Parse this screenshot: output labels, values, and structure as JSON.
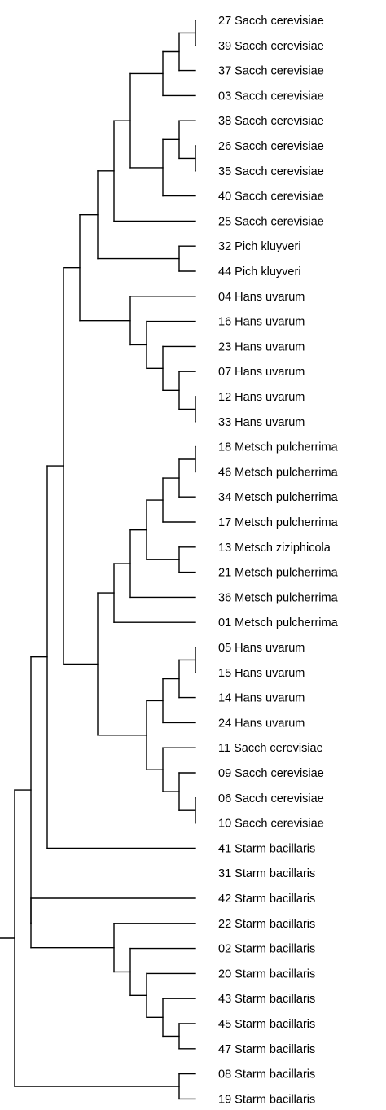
{
  "colors": {
    "line": "#000000",
    "text": "#000000",
    "background": "#ffffff"
  },
  "tree": {
    "leaves": [
      "27 Sacch cerevisiae",
      "39 Sacch cerevisiae",
      "37 Sacch cerevisiae",
      "03 Sacch cerevisiae",
      "38 Sacch cerevisiae",
      "26 Sacch cerevisiae",
      "35 Sacch cerevisiae",
      "40 Sacch cerevisiae",
      "25 Sacch cerevisiae",
      "32 Pich kluyveri",
      "44 Pich kluyveri",
      "04 Hans uvarum",
      "16 Hans uvarum",
      "23 Hans uvarum",
      "07 Hans uvarum",
      "12 Hans uvarum",
      "33 Hans uvarum",
      "18 Metsch pulcherrima",
      "46 Metsch pulcherrima",
      "34 Metsch pulcherrima",
      "17 Metsch pulcherrima",
      "13 Metsch ziziphicola",
      "21 Metsch pulcherrima",
      "36 Metsch pulcherrima",
      "01 Metsch pulcherrima",
      "05 Hans uvarum",
      "15 Hans uvarum",
      "14 Hans uvarum",
      "24 Hans uvarum",
      "11 Sacch cerevisiae",
      "09 Sacch cerevisiae",
      "06 Sacch cerevisiae",
      "10 Sacch cerevisiae",
      "41 Starm bacillaris",
      "31 Starm bacillaris",
      "42 Starm bacillaris",
      "22 Starm bacillaris",
      "02 Starm bacillaris",
      "20 Starm bacillaris",
      "43 Starm bacillaris",
      "45 Starm bacillaris",
      "47 Starm bacillaris",
      "08 Starm bacillaris",
      "19 Starm bacillaris"
    ]
  }
}
